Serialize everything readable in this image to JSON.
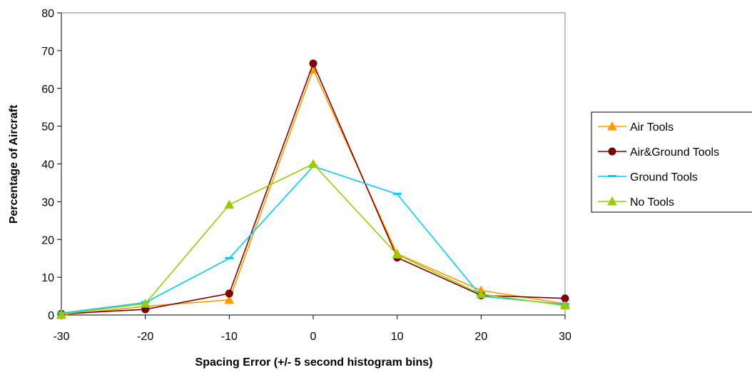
{
  "chart_data": {
    "type": "line",
    "title": "",
    "xlabel": "Spacing Error (+/- 5 second histogram bins)",
    "ylabel": "Percentage of Aircraft",
    "x": [
      -30,
      -20,
      -10,
      0,
      10,
      20,
      30
    ],
    "x_ticks": [
      "-30",
      "-20",
      "-10",
      "0",
      "10",
      "20",
      "30"
    ],
    "y_ticks": [
      "0",
      "10",
      "20",
      "30",
      "40",
      "50",
      "60",
      "70",
      "80"
    ],
    "xlim": [
      -30,
      30
    ],
    "ylim": [
      0,
      80
    ],
    "grid": false,
    "legend_position": "right",
    "series": [
      {
        "name": "Air Tools",
        "color": "#ff9900",
        "marker": "triangle",
        "values": [
          0,
          2.3,
          4,
          65,
          16.2,
          6.5,
          3
        ]
      },
      {
        "name": "Air&Ground Tools",
        "color": "#800000",
        "marker": "circle",
        "values": [
          0.3,
          1.5,
          5.7,
          66.6,
          15.2,
          5.2,
          4.4
        ]
      },
      {
        "name": "Ground Tools",
        "color": "#00ccff",
        "marker": "dash",
        "values": [
          0.5,
          3.3,
          15,
          39.4,
          32,
          5,
          2.8
        ]
      },
      {
        "name": "No Tools",
        "color": "#99cc00",
        "marker": "triangle",
        "values": [
          0.2,
          3,
          29.2,
          40,
          16,
          5.5,
          2.5
        ]
      }
    ]
  }
}
